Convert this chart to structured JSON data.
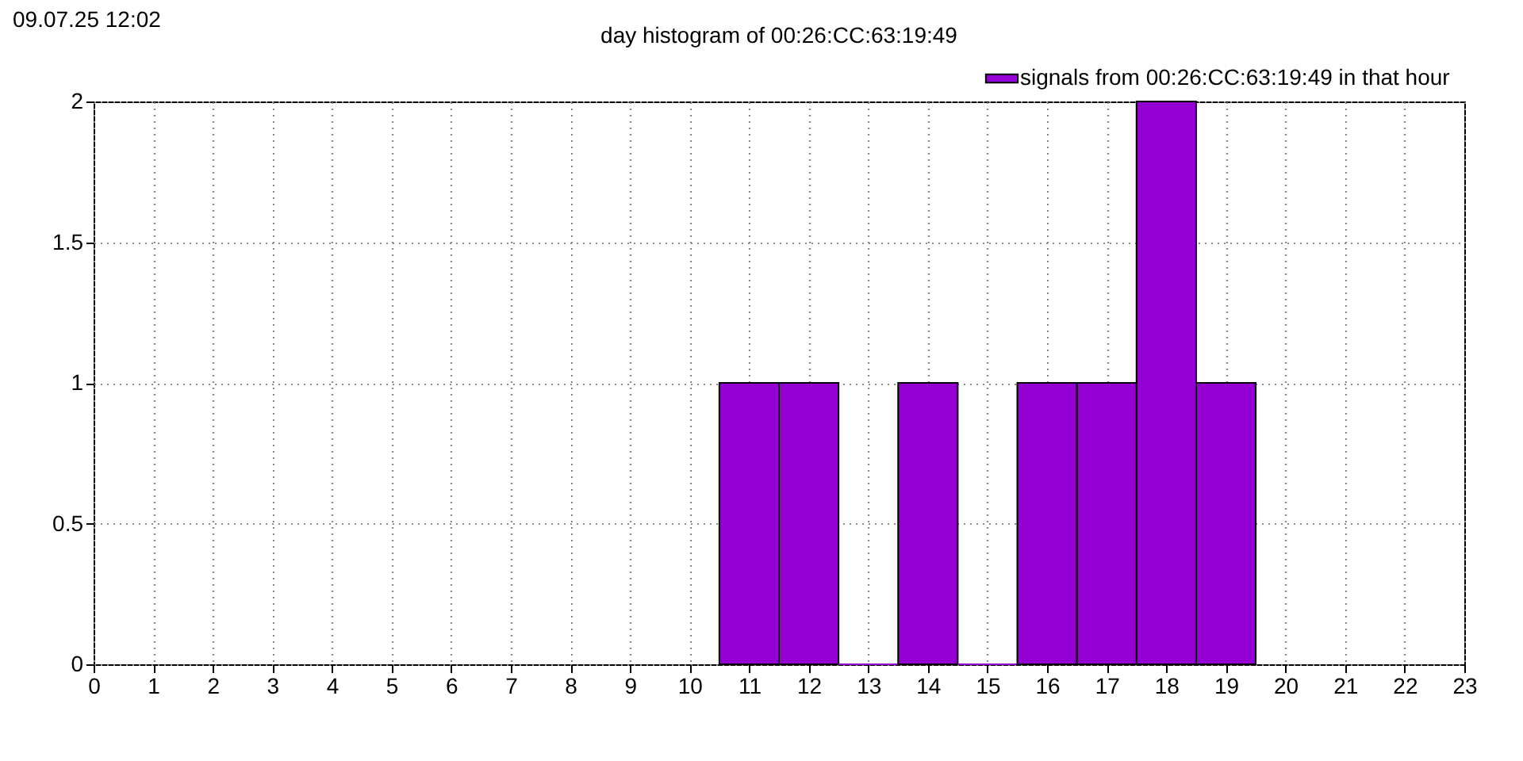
{
  "chart_data": {
    "type": "histogram",
    "title": "day histogram of 00:26:CC:63:19:49",
    "annotations": [
      "09.07.25 12:02"
    ],
    "bins": [
      10.5,
      11.5,
      12.5,
      13.5,
      14.5,
      15.5,
      16.5,
      17.5,
      18.5,
      19.5
    ],
    "series": [
      {
        "name": "signals from 00:26:CC:63:19:49 in that hour",
        "color": "#9400d3",
        "values": [
          1,
          1,
          0,
          1,
          0,
          1,
          1,
          2,
          1
        ]
      }
    ],
    "xlim": [
      0,
      23
    ],
    "xticks": [
      0,
      1,
      2,
      3,
      4,
      5,
      6,
      7,
      8,
      9,
      10,
      11,
      12,
      13,
      14,
      15,
      16,
      17,
      18,
      19,
      20,
      21,
      22,
      23
    ],
    "ylim": [
      0,
      2
    ],
    "yticks": [
      0,
      0.5,
      1,
      1.5,
      2
    ],
    "grid": true,
    "legend": "top right"
  }
}
